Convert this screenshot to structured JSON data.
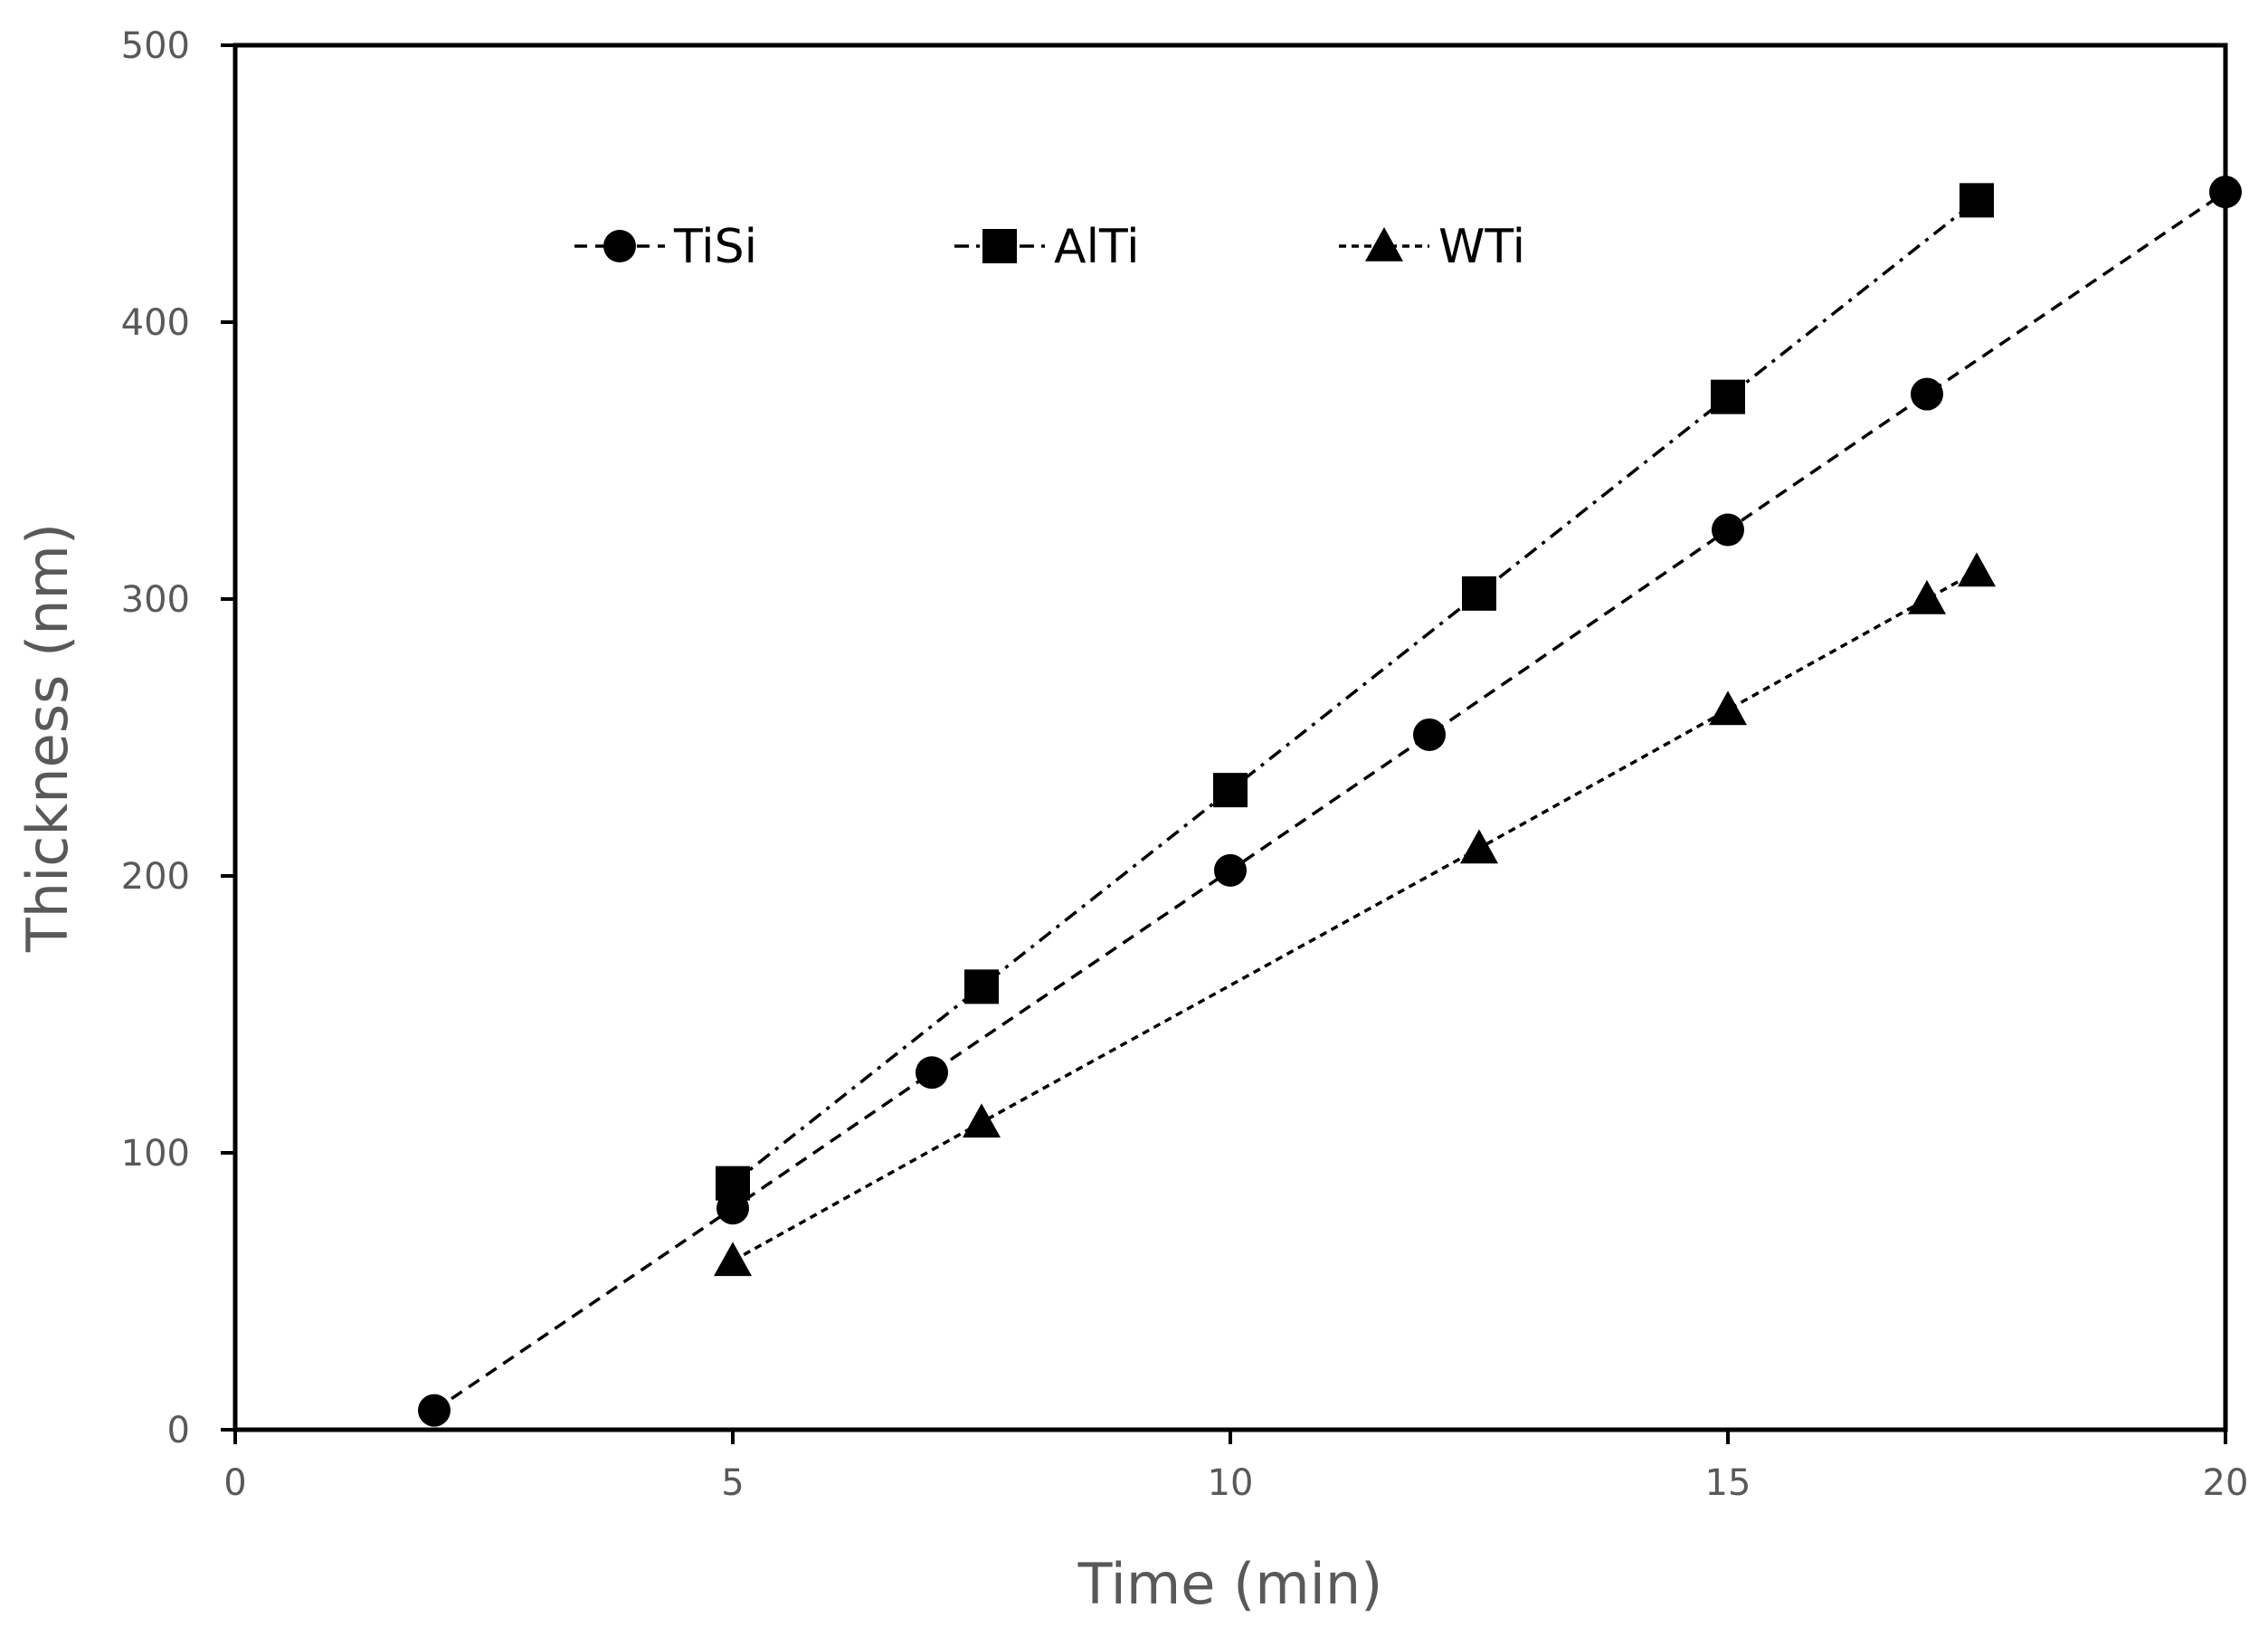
{
  "chart_data": {
    "type": "line",
    "title": "",
    "xlabel": "Time (min)",
    "ylabel": "Thickness (nm)",
    "xlim": [
      0,
      20
    ],
    "ylim": [
      0,
      500
    ],
    "xticks": [
      0,
      5,
      10,
      15,
      20
    ],
    "yticks": [
      0,
      100,
      200,
      300,
      400,
      500
    ],
    "grid": false,
    "legend_position": "top",
    "series": [
      {
        "name": "TiSi",
        "marker": "circle",
        "line_style": "dashed",
        "color": "#000000",
        "x": [
          2,
          5,
          7,
          10,
          12,
          15,
          17,
          20
        ],
        "y": [
          7,
          80,
          129,
          202,
          251,
          325,
          374,
          447
        ]
      },
      {
        "name": "AlTi",
        "marker": "square",
        "line_style": "dash-dot",
        "color": "#000000",
        "x": [
          5,
          7.5,
          10,
          12.5,
          15,
          17.5
        ],
        "y": [
          89,
          160,
          231,
          302,
          373,
          444
        ]
      },
      {
        "name": "WTi",
        "marker": "triangle",
        "line_style": "dotted",
        "color": "#000000",
        "x": [
          5,
          7.5,
          12.5,
          15,
          17,
          17.5
        ],
        "y": [
          61,
          111,
          210,
          260,
          300,
          310
        ]
      }
    ]
  }
}
